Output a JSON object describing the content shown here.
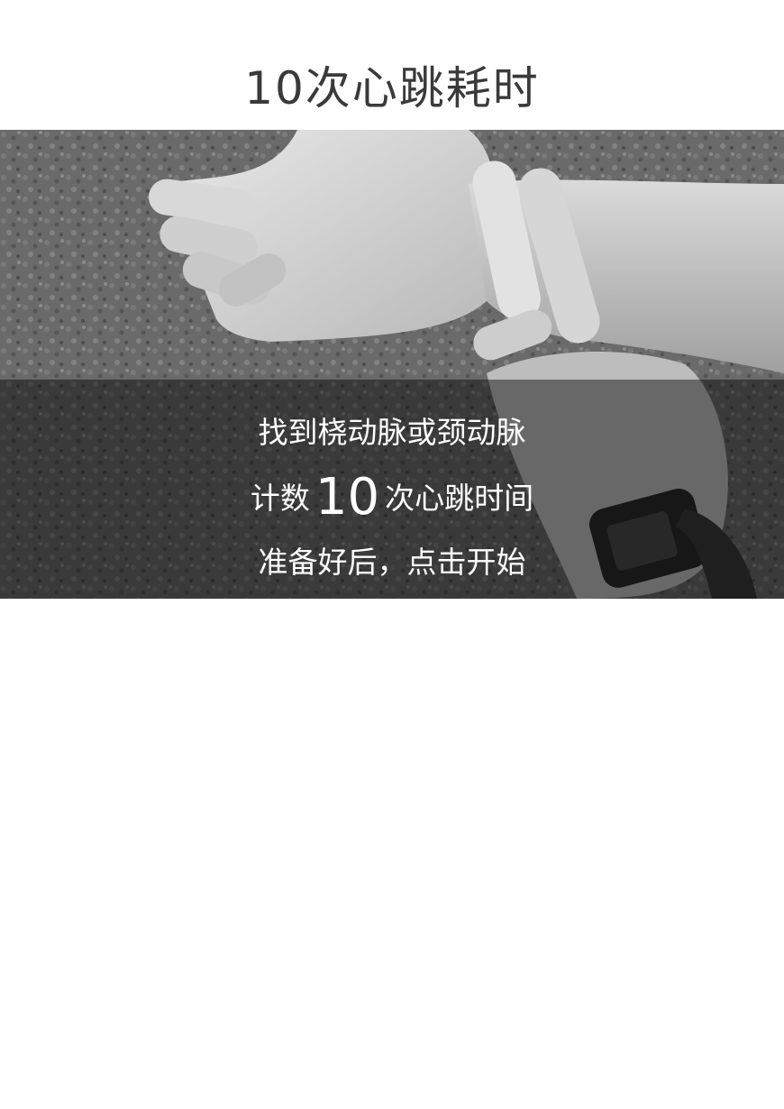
{
  "page": {
    "title": "10次心跳耗时"
  },
  "hero": {
    "image_icon": "wrist-pulse-photo",
    "line1": "找到桡动脉或颈动脉",
    "line2_prefix": "计数",
    "line2_number": "10",
    "line2_suffix": "次心跳时间",
    "line3": "准备好后，点击开始"
  },
  "colors": {
    "title": "#3a3a3a",
    "overlay": "#000000",
    "text_on_overlay": "#ffffff",
    "background": "#ffffff"
  }
}
